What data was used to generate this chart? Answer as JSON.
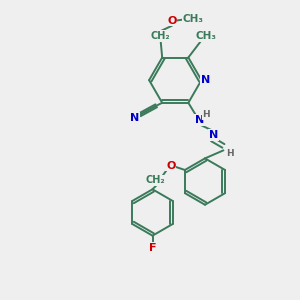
{
  "bg_color": "#efefef",
  "bond_color": "#3a7a5a",
  "N_color": "#0000cc",
  "O_color": "#cc0000",
  "F_color": "#cc0000",
  "H_color": "#666666",
  "figsize": [
    3.0,
    3.0
  ],
  "dpi": 100,
  "xlim": [
    0,
    10
  ],
  "ylim": [
    0,
    10
  ]
}
